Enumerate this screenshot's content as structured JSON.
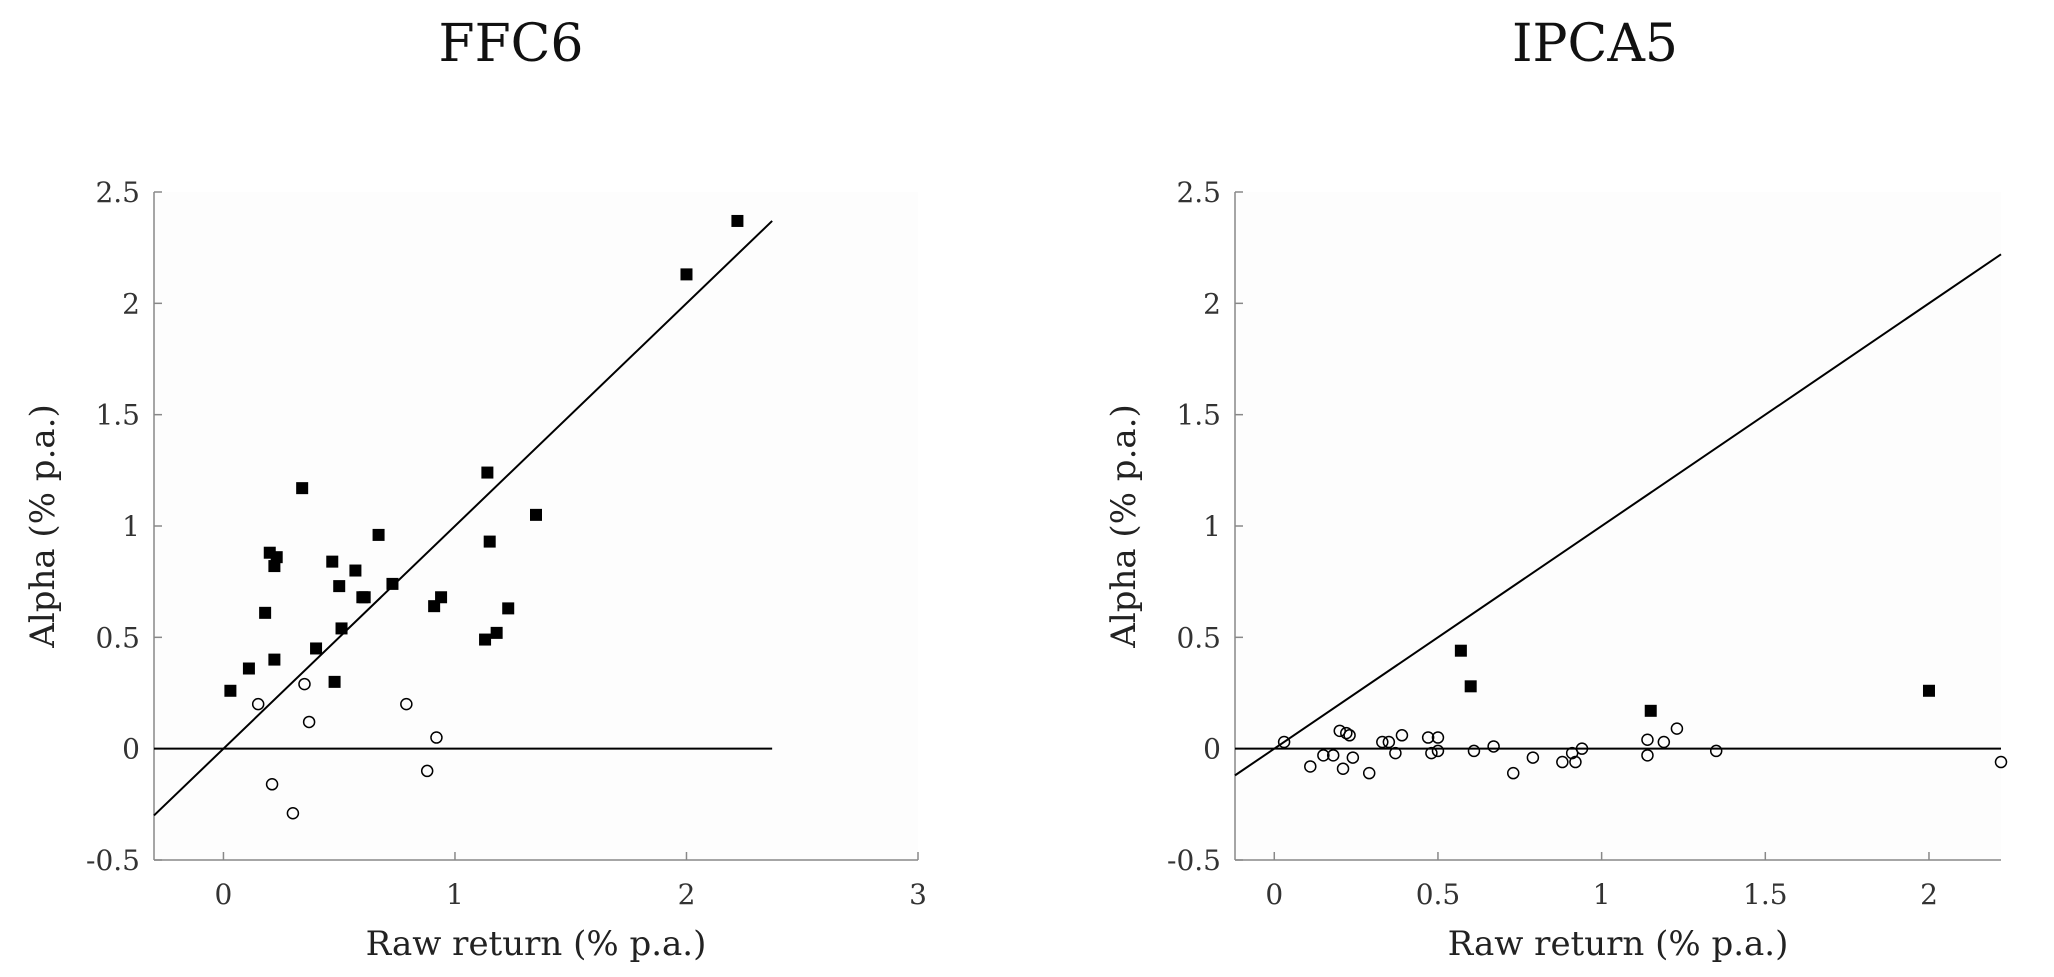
{
  "chart_data": [
    {
      "type": "scatter",
      "title": "FFC6",
      "xlabel": "Raw return (% p.a.)",
      "ylabel": "Alpha (% p.a.)",
      "xlim": [
        -0.3,
        3
      ],
      "ylim": [
        -0.5,
        2.5
      ],
      "xticks": [
        0,
        1,
        2,
        3
      ],
      "yticks": [
        -0.5,
        0,
        0.5,
        1,
        1.5,
        2,
        2.5
      ],
      "xtick_labels": [
        "0",
        "1",
        "2",
        "3"
      ],
      "ytick_labels": [
        "-0.5",
        "0",
        "0.5",
        "1",
        "1.5",
        "2",
        "2.5"
      ],
      "reference_lines": [
        {
          "kind": "45-degree",
          "x": [
            -0.3,
            2.37
          ],
          "y": [
            -0.3,
            2.37
          ]
        },
        {
          "kind": "zero",
          "x": [
            -0.3,
            2.37
          ],
          "y": [
            0,
            0
          ]
        }
      ],
      "series": [
        {
          "marker": "filled-square",
          "points": [
            [
              0.03,
              0.26
            ],
            [
              0.11,
              0.36
            ],
            [
              0.18,
              0.61
            ],
            [
              0.2,
              0.88
            ],
            [
              0.22,
              0.82
            ],
            [
              0.23,
              0.86
            ],
            [
              0.22,
              0.4
            ],
            [
              0.34,
              1.17
            ],
            [
              0.4,
              0.45
            ],
            [
              0.47,
              0.84
            ],
            [
              0.48,
              0.3
            ],
            [
              0.5,
              0.73
            ],
            [
              0.51,
              0.54
            ],
            [
              0.57,
              0.8
            ],
            [
              0.6,
              0.68
            ],
            [
              0.61,
              0.68
            ],
            [
              0.67,
              0.96
            ],
            [
              0.73,
              0.74
            ],
            [
              0.91,
              0.64
            ],
            [
              0.94,
              0.68
            ],
            [
              1.14,
              1.24
            ],
            [
              1.13,
              0.49
            ],
            [
              1.15,
              0.93
            ],
            [
              1.18,
              0.52
            ],
            [
              1.23,
              0.63
            ],
            [
              1.35,
              1.05
            ],
            [
              2.0,
              2.13
            ],
            [
              2.22,
              2.37
            ]
          ]
        },
        {
          "marker": "open-circle",
          "points": [
            [
              0.15,
              0.2
            ],
            [
              0.21,
              -0.16
            ],
            [
              0.3,
              -0.29
            ],
            [
              0.35,
              0.29
            ],
            [
              0.37,
              0.12
            ],
            [
              0.79,
              0.2
            ],
            [
              0.88,
              -0.1
            ],
            [
              0.92,
              0.05
            ]
          ]
        }
      ]
    },
    {
      "type": "scatter",
      "title": "IPCA5",
      "xlabel": "Raw return (% p.a.)",
      "ylabel": "Alpha (% p.a.)",
      "xlim": [
        -0.12,
        2.22
      ],
      "ylim": [
        -0.5,
        2.5
      ],
      "xticks": [
        0,
        0.5,
        1,
        1.5,
        2
      ],
      "yticks": [
        -0.5,
        0,
        0.5,
        1,
        1.5,
        2,
        2.5
      ],
      "xtick_labels": [
        "0",
        "0.5",
        "1",
        "1.5",
        "2"
      ],
      "ytick_labels": [
        "-0.5",
        "0",
        "0.5",
        "1",
        "1.5",
        "2",
        "2.5"
      ],
      "reference_lines": [
        {
          "kind": "45-degree",
          "x": [
            -0.12,
            2.22
          ],
          "y": [
            -0.12,
            2.22
          ]
        },
        {
          "kind": "zero",
          "x": [
            -0.12,
            2.22
          ],
          "y": [
            0,
            0
          ]
        }
      ],
      "series": [
        {
          "marker": "filled-square",
          "points": [
            [
              0.57,
              0.44
            ],
            [
              0.6,
              0.28
            ],
            [
              1.15,
              0.17
            ],
            [
              2.0,
              0.26
            ]
          ]
        },
        {
          "marker": "open-circle",
          "points": [
            [
              0.03,
              0.03
            ],
            [
              0.11,
              -0.08
            ],
            [
              0.15,
              -0.03
            ],
            [
              0.18,
              -0.03
            ],
            [
              0.2,
              0.08
            ],
            [
              0.21,
              -0.09
            ],
            [
              0.22,
              0.07
            ],
            [
              0.23,
              0.06
            ],
            [
              0.24,
              -0.04
            ],
            [
              0.29,
              -0.11
            ],
            [
              0.33,
              0.03
            ],
            [
              0.35,
              0.03
            ],
            [
              0.37,
              -0.02
            ],
            [
              0.39,
              0.06
            ],
            [
              0.47,
              0.05
            ],
            [
              0.48,
              -0.02
            ],
            [
              0.5,
              0.05
            ],
            [
              0.5,
              -0.01
            ],
            [
              0.61,
              -0.01
            ],
            [
              0.67,
              0.01
            ],
            [
              0.73,
              -0.11
            ],
            [
              0.79,
              -0.04
            ],
            [
              0.88,
              -0.06
            ],
            [
              0.91,
              -0.02
            ],
            [
              0.92,
              -0.06
            ],
            [
              0.94,
              0.0
            ],
            [
              1.14,
              0.04
            ],
            [
              1.14,
              -0.03
            ],
            [
              1.19,
              0.03
            ],
            [
              1.23,
              0.09
            ],
            [
              1.35,
              -0.01
            ],
            [
              2.22,
              -0.06
            ]
          ]
        }
      ]
    }
  ]
}
